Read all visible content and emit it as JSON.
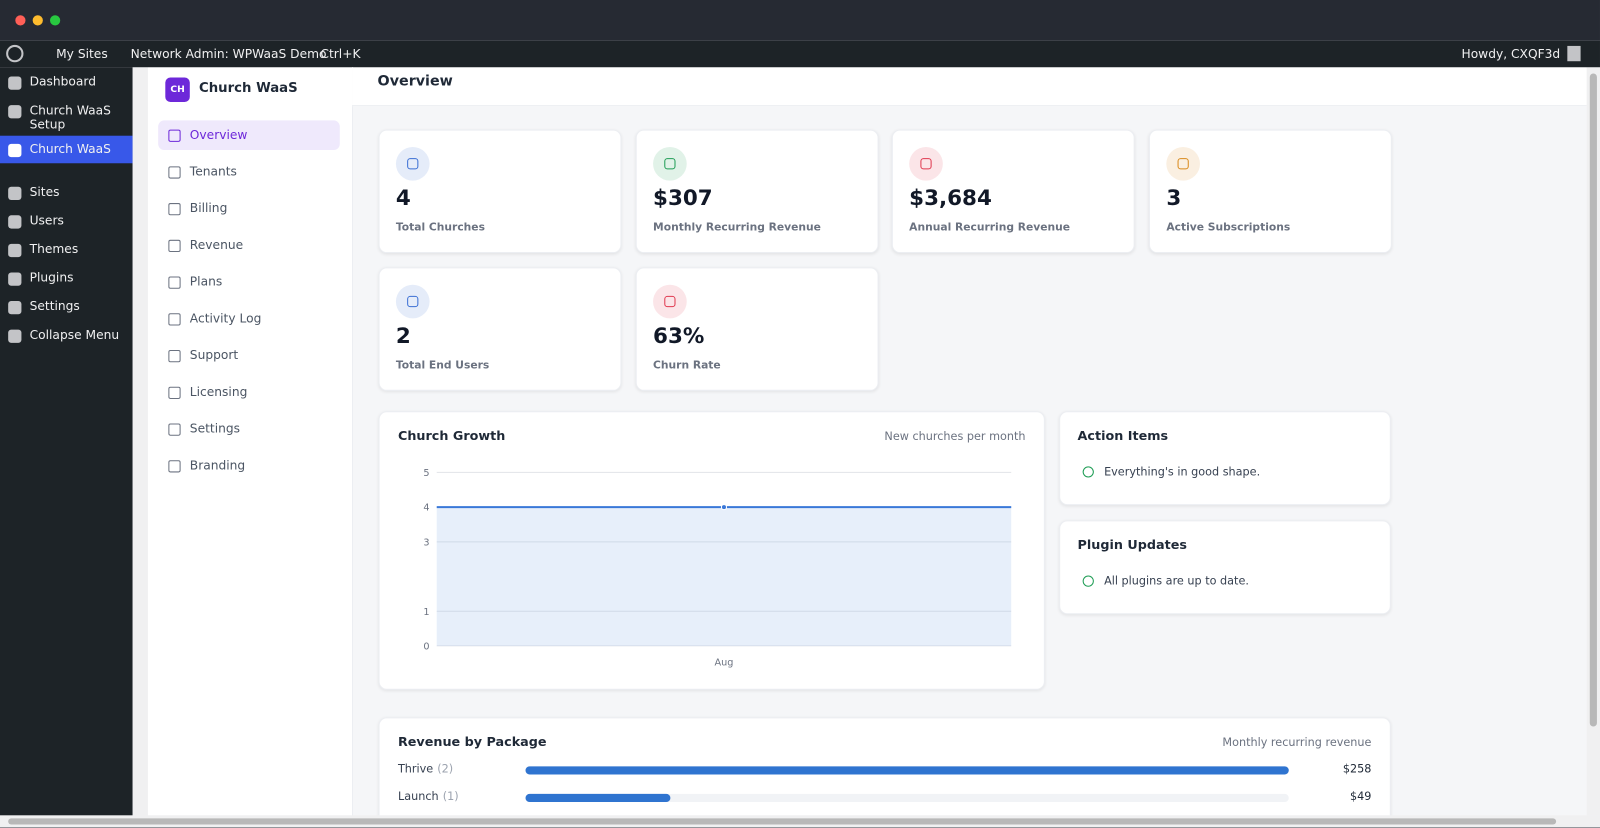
{
  "admin_bar": {
    "my_sites": "My Sites",
    "network_admin": "Network Admin: WPWaaS Demo",
    "search": "Ctrl+K",
    "greeting": "Howdy, CXQF3d"
  },
  "wp_menu": {
    "items": [
      "Dashboard",
      "Church WaaS Setup",
      "Church WaaS",
      "Sites",
      "Users",
      "Themes",
      "Plugins",
      "Settings",
      "Collapse Menu"
    ],
    "active": 2
  },
  "plugin": {
    "logo": "CH",
    "name": "Church WaaS",
    "nav": [
      "Overview",
      "Tenants",
      "Billing",
      "Revenue",
      "Plans",
      "Activity Log",
      "Support",
      "Licensing",
      "Settings",
      "Branding"
    ],
    "active": 0
  },
  "page_title": "Overview",
  "stats": [
    {
      "value": "4",
      "label": "Total Churches",
      "color": "#3b6fd4"
    },
    {
      "value": "$307",
      "label": "Monthly Recurring Revenue",
      "color": "#1f9d55"
    },
    {
      "value": "$3,684",
      "label": "Annual Recurring Revenue",
      "color": "#e0394f"
    },
    {
      "value": "3",
      "label": "Active Subscriptions",
      "color": "#d98a1c"
    },
    {
      "value": "2",
      "label": "Total End Users",
      "color": "#3b6fd4"
    },
    {
      "value": "63%",
      "label": "Churn Rate",
      "color": "#e0394f"
    }
  ],
  "action_items": {
    "title": "Action Items",
    "message": "Everything's in good shape."
  },
  "plugin_updates": {
    "title": "Plugin Updates",
    "message": "All plugins are up to date."
  },
  "chart_data": [
    {
      "type": "line",
      "title": "Church Growth",
      "subtitle": "New churches per month",
      "categories": [
        "Aug"
      ],
      "values": [
        4
      ],
      "color": "#3a78d8",
      "ylim": [
        0,
        5
      ],
      "yticks": [
        0,
        1,
        3,
        4,
        5
      ],
      "grid": true
    },
    {
      "type": "hbar",
      "title": "Revenue by Package",
      "subtitle": "Monthly recurring revenue",
      "categories": [
        "Thrive",
        "Launch"
      ],
      "category_notes": [
        "(2)",
        "(1)"
      ],
      "values": [
        258,
        49
      ],
      "value_labels": [
        "$258",
        "$49"
      ],
      "color": "#2f74d0",
      "xlim": [
        0,
        258
      ]
    }
  ]
}
